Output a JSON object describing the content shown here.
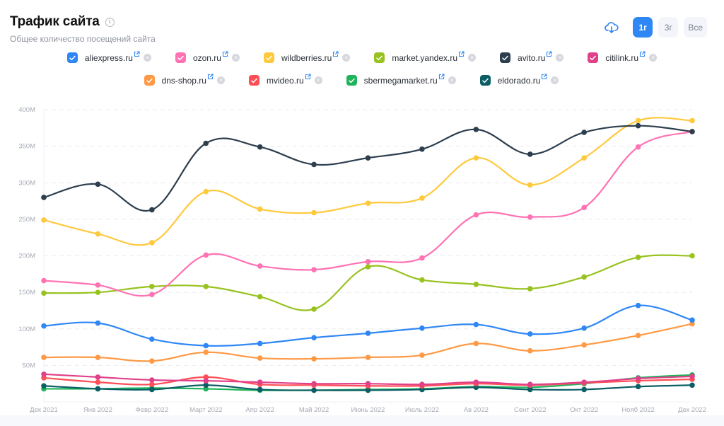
{
  "header": {
    "title": "Трафик сайта",
    "subtitle": "Общее количество посещений сайта",
    "info_icon": "info-icon",
    "download_icon": "cloud-download-icon"
  },
  "periods": [
    {
      "label": "1г",
      "active": true
    },
    {
      "label": "3г",
      "active": false
    },
    {
      "label": "Все",
      "active": false
    }
  ],
  "legend": [
    {
      "name": "aliexpress.ru",
      "color": "#2f87f6",
      "checked": true
    },
    {
      "name": "ozon.ru",
      "color": "#ff72b3",
      "checked": true
    },
    {
      "name": "wildberries.ru",
      "color": "#ffc93c",
      "checked": true
    },
    {
      "name": "market.yandex.ru",
      "color": "#98c21f",
      "checked": true
    },
    {
      "name": "avito.ru",
      "color": "#2d3e4e",
      "checked": true
    },
    {
      "name": "citilink.ru",
      "color": "#e0408a",
      "checked": true
    },
    {
      "name": "dns-shop.ru",
      "color": "#ff9945",
      "checked": true
    },
    {
      "name": "mvideo.ru",
      "color": "#ff4f56",
      "checked": true
    },
    {
      "name": "sbermegamarket.ru",
      "color": "#1fb35b",
      "checked": true
    },
    {
      "name": "eldorado.ru",
      "color": "#0b5e64",
      "checked": true
    }
  ],
  "chart_data": {
    "type": "line",
    "title": "Трафик сайта",
    "xlabel": "",
    "ylabel": "",
    "ylim": [
      0,
      400
    ],
    "y_unit": "M",
    "y_ticks": [
      "400M",
      "350M",
      "300M",
      "250M",
      "200M",
      "150M",
      "100M",
      "50M"
    ],
    "y_tick_values": [
      400,
      350,
      300,
      250,
      200,
      150,
      100,
      50
    ],
    "grid": true,
    "legend_position": "top",
    "categories": [
      "Дек 2021",
      "Янв 2022",
      "Февр 2022",
      "Март 2022",
      "Апр 2022",
      "Май 2022",
      "Июнь 2022",
      "Июль 2022",
      "Ав 2022",
      "Сент 2022",
      "Окт 2022",
      "Нояб 2022",
      "Дек 2022"
    ],
    "series": [
      {
        "name": "avito.ru",
        "color": "#2d3e4e",
        "values": [
          280,
          298,
          263,
          354,
          349,
          325,
          334,
          346,
          373,
          339,
          369,
          378,
          370
        ]
      },
      {
        "name": "wildberries.ru",
        "color": "#ffc93c",
        "values": [
          249,
          230,
          218,
          288,
          264,
          259,
          272,
          279,
          334,
          297,
          334,
          385,
          385
        ]
      },
      {
        "name": "ozon.ru",
        "color": "#ff72b3",
        "values": [
          166,
          160,
          147,
          201,
          186,
          181,
          192,
          197,
          256,
          253,
          266,
          349,
          370
        ]
      },
      {
        "name": "market.yandex.ru",
        "color": "#98c21f",
        "values": [
          149,
          150,
          158,
          158,
          144,
          127,
          185,
          167,
          161,
          155,
          171,
          198,
          200
        ]
      },
      {
        "name": "aliexpress.ru",
        "color": "#2f87f6",
        "values": [
          104,
          108,
          86,
          77,
          80,
          88,
          94,
          101,
          106,
          93,
          101,
          132,
          112
        ]
      },
      {
        "name": "dns-shop.ru",
        "color": "#ff9945",
        "values": [
          61,
          61,
          56,
          68,
          60,
          59,
          61,
          64,
          80,
          70,
          78,
          91,
          107
        ]
      },
      {
        "name": "citilink.ru",
        "color": "#e0408a",
        "values": [
          38,
          34,
          30,
          29,
          27,
          25,
          25,
          24,
          27,
          24,
          27,
          32,
          35
        ]
      },
      {
        "name": "mvideo.ru",
        "color": "#ff4f56",
        "values": [
          33,
          27,
          24,
          34,
          24,
          23,
          22,
          22,
          25,
          23,
          26,
          29,
          31
        ]
      },
      {
        "name": "eldorado.ru",
        "color": "#0b5e64",
        "values": [
          22,
          18,
          17,
          23,
          17,
          16,
          16,
          17,
          20,
          17,
          17,
          21,
          23
        ]
      },
      {
        "name": "sbermegamarket.ru",
        "color": "#1fb35b",
        "values": [
          18,
          18,
          19,
          18,
          16,
          16,
          17,
          18,
          21,
          20,
          25,
          33,
          37
        ]
      }
    ]
  }
}
